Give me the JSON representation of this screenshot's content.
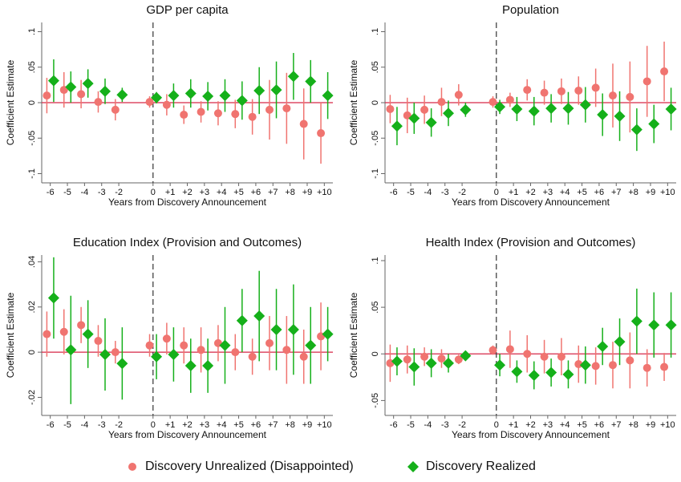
{
  "chart_data": [
    {
      "type": "errorbar",
      "title": "GDP per capita",
      "x_label": "Years from Discovery Announcement",
      "y_label": "Coefficient Estimate",
      "x": [
        -6,
        -5,
        -4,
        -3,
        -2,
        0,
        1,
        2,
        3,
        4,
        5,
        6,
        7,
        8,
        9,
        10
      ],
      "xlim": [
        -6.5,
        10.5
      ],
      "xticks": [
        -6,
        -5,
        -4,
        -3,
        -2,
        0,
        {
          "value": 1,
          "label": "+1"
        },
        {
          "value": 2,
          "label": "+2"
        },
        {
          "value": 3,
          "label": "+3"
        },
        {
          "value": 4,
          "label": "+4"
        },
        {
          "value": 5,
          "label": "+5"
        },
        {
          "value": 6,
          "label": "+6"
        },
        {
          "value": 7,
          "label": "+7"
        },
        {
          "value": 8,
          "label": "+8"
        },
        {
          "value": 9,
          "label": "+9"
        },
        {
          "value": 10,
          "label": "+10"
        }
      ],
      "ylim": [
        -0.113,
        0.113
      ],
      "yticks": [
        {
          "value": -0.1,
          "label": "-.1"
        },
        {
          "value": -0.05,
          "label": "-.05"
        },
        0,
        {
          "value": 0.05,
          "label": ".05"
        },
        {
          "value": 0.1,
          "label": ".1"
        }
      ],
      "vline": 0,
      "hline": 0,
      "hline_color": "#d62747",
      "series": [
        {
          "name": "Discovery Unrealized (Disappointed)",
          "color": "#f07470",
          "marker": "circle",
          "values": [
            0.01,
            0.018,
            0.012,
            0.001,
            -0.01,
            0.001,
            -0.003,
            -0.017,
            -0.013,
            -0.015,
            -0.016,
            -0.02,
            -0.01,
            -0.008,
            -0.03,
            -0.043
          ],
          "errors": [
            0.025,
            0.025,
            0.02,
            0.015,
            0.015,
            0.008,
            0.015,
            0.013,
            0.015,
            0.017,
            0.02,
            0.025,
            0.042,
            0.05,
            0.05,
            0.043
          ]
        },
        {
          "name": "Discovery Realized",
          "color": "#15b01a",
          "marker": "diamond",
          "values": [
            0.031,
            0.022,
            0.027,
            0.016,
            0.011,
            0.007,
            0.01,
            0.013,
            0.009,
            0.01,
            0.003,
            0.017,
            0.018,
            0.037,
            0.03,
            0.01
          ],
          "errors": [
            0.03,
            0.022,
            0.02,
            0.018,
            0.01,
            0.008,
            0.017,
            0.02,
            0.02,
            0.023,
            0.027,
            0.033,
            0.04,
            0.033,
            0.03,
            0.033
          ]
        }
      ]
    },
    {
      "type": "errorbar",
      "title": "Population",
      "x_label": "Years from Discovery Announcement",
      "y_label": "Coefficient Estimate",
      "x": [
        -6,
        -5,
        -4,
        -3,
        -2,
        0,
        1,
        2,
        3,
        4,
        5,
        6,
        7,
        8,
        9,
        10
      ],
      "xlim": [
        -6.5,
        10.5
      ],
      "xticks": [
        -6,
        -5,
        -4,
        -3,
        -2,
        0,
        {
          "value": 1,
          "label": "+1"
        },
        {
          "value": 2,
          "label": "+2"
        },
        {
          "value": 3,
          "label": "+3"
        },
        {
          "value": 4,
          "label": "+4"
        },
        {
          "value": 5,
          "label": "+5"
        },
        {
          "value": 6,
          "label": "+6"
        },
        {
          "value": 7,
          "label": "+7"
        },
        {
          "value": 8,
          "label": "+8"
        },
        {
          "value": 9,
          "label": "+9"
        },
        {
          "value": 10,
          "label": "+10"
        }
      ],
      "ylim": [
        -0.113,
        0.113
      ],
      "yticks": [
        {
          "value": -0.1,
          "label": "-.1"
        },
        {
          "value": -0.05,
          "label": "-.05"
        },
        0,
        {
          "value": 0.05,
          "label": ".05"
        },
        {
          "value": 0.1,
          "label": ".1"
        }
      ],
      "vline": 0,
      "hline": 0,
      "hline_color": "#d62747",
      "series": [
        {
          "color": "#f07470",
          "marker": "circle",
          "values": [
            -0.009,
            -0.018,
            -0.01,
            0.001,
            0.011,
            0.001,
            0.004,
            0.018,
            0.014,
            0.016,
            0.017,
            0.021,
            0.01,
            0.008,
            0.03,
            0.044
          ],
          "errors": [
            0.02,
            0.025,
            0.02,
            0.02,
            0.015,
            0.008,
            0.01,
            0.015,
            0.017,
            0.018,
            0.02,
            0.027,
            0.045,
            0.05,
            0.05,
            0.042
          ]
        },
        {
          "color": "#15b01a",
          "marker": "diamond",
          "values": [
            -0.033,
            -0.022,
            -0.028,
            -0.015,
            -0.01,
            -0.006,
            -0.009,
            -0.012,
            -0.008,
            -0.008,
            -0.003,
            -0.017,
            -0.019,
            -0.038,
            -0.03,
            -0.009
          ],
          "errors": [
            0.027,
            0.022,
            0.02,
            0.018,
            0.01,
            0.01,
            0.017,
            0.02,
            0.02,
            0.023,
            0.025,
            0.03,
            0.035,
            0.03,
            0.027,
            0.03
          ]
        }
      ]
    },
    {
      "type": "errorbar",
      "title": "Education Index (Provision and Outcomes)",
      "x_label": "Years from Discovery Announcement",
      "y_label": "Coefficient Estimate",
      "x": [
        -6,
        -5,
        -4,
        -3,
        -2,
        0,
        1,
        2,
        3,
        4,
        5,
        6,
        7,
        8,
        9,
        10
      ],
      "xlim": [
        -6.5,
        10.5
      ],
      "xticks": [
        -6,
        -5,
        -4,
        -3,
        -2,
        0,
        {
          "value": 1,
          "label": "+1"
        },
        {
          "value": 2,
          "label": "+2"
        },
        {
          "value": 3,
          "label": "+3"
        },
        {
          "value": 4,
          "label": "+4"
        },
        {
          "value": 5,
          "label": "+5"
        },
        {
          "value": 6,
          "label": "+6"
        },
        {
          "value": 7,
          "label": "+7"
        },
        {
          "value": 8,
          "label": "+8"
        },
        {
          "value": 9,
          "label": "+9"
        },
        {
          "value": 10,
          "label": "+10"
        }
      ],
      "ylim": [
        -0.028,
        0.043
      ],
      "yticks": [
        {
          "value": -0.02,
          "label": "-.02"
        },
        0,
        {
          "value": 0.02,
          "label": ".02"
        },
        {
          "value": 0.04,
          "label": ".04"
        }
      ],
      "vline": 0,
      "hline": 0,
      "hline_color": "#d62747",
      "series": [
        {
          "color": "#f07470",
          "marker": "circle",
          "values": [
            0.008,
            0.009,
            0.012,
            0.005,
            0,
            0.003,
            0.006,
            0.003,
            0.001,
            0.004,
            0,
            -0.002,
            0.004,
            0.001,
            -0.002,
            0.007
          ],
          "errors": [
            0.01,
            0.01,
            0.008,
            0.007,
            0.005,
            0.005,
            0.007,
            0.008,
            0.01,
            0.008,
            0.008,
            0.008,
            0.012,
            0.015,
            0.012,
            0.015
          ]
        },
        {
          "color": "#15b01a",
          "marker": "diamond",
          "values": [
            0.024,
            0.001,
            0.008,
            -0.001,
            -0.005,
            -0.002,
            -0.001,
            -0.006,
            -0.006,
            0.003,
            0.014,
            0.016,
            0.01,
            0.01,
            0.003,
            0.008
          ],
          "errors": [
            0.018,
            0.024,
            0.015,
            0.016,
            0.016,
            0.01,
            0.012,
            0.012,
            0.012,
            0.017,
            0.014,
            0.02,
            0.018,
            0.02,
            0.017,
            0.012
          ]
        }
      ]
    },
    {
      "type": "errorbar",
      "title": "Health Index (Provision and Outcomes)",
      "x_label": "Years from Discovery Announcement",
      "y_label": "Coefficient Estimate",
      "x": [
        -6,
        -5,
        -4,
        -3,
        -2,
        0,
        1,
        2,
        3,
        4,
        5,
        6,
        7,
        8,
        9,
        10
      ],
      "xlim": [
        -6.5,
        10.5
      ],
      "xticks": [
        -6,
        -5,
        -4,
        -3,
        -2,
        0,
        {
          "value": 1,
          "label": "+1"
        },
        {
          "value": 2,
          "label": "+2"
        },
        {
          "value": 3,
          "label": "+3"
        },
        {
          "value": 4,
          "label": "+4"
        },
        {
          "value": 5,
          "label": "+5"
        },
        {
          "value": 6,
          "label": "+6"
        },
        {
          "value": 7,
          "label": "+7"
        },
        {
          "value": 8,
          "label": "+8"
        },
        {
          "value": 9,
          "label": "+9"
        },
        {
          "value": 10,
          "label": "+10"
        }
      ],
      "ylim": [
        -0.066,
        0.106
      ],
      "yticks": [
        {
          "value": -0.05,
          "label": "-.05"
        },
        0,
        {
          "value": 0.05,
          "label": ".05"
        },
        {
          "value": 0.1,
          "label": ".1"
        }
      ],
      "vline": 0,
      "hline": 0,
      "hline_color": "#d62747",
      "series": [
        {
          "color": "#f07470",
          "marker": "circle",
          "values": [
            -0.01,
            -0.006,
            -0.003,
            -0.005,
            -0.006,
            0.004,
            0.005,
            0,
            -0.003,
            -0.003,
            -0.011,
            -0.013,
            -0.012,
            -0.007,
            -0.015,
            -0.014
          ],
          "errors": [
            0.02,
            0.015,
            0.01,
            0.01,
            0.005,
            0.005,
            0.02,
            0.02,
            0.018,
            0.02,
            0.02,
            0.02,
            0.025,
            0.03,
            0.02,
            0.015
          ]
        },
        {
          "color": "#15b01a",
          "marker": "diamond",
          "values": [
            -0.008,
            -0.014,
            -0.01,
            -0.01,
            -0.002,
            -0.012,
            -0.019,
            -0.023,
            -0.02,
            -0.022,
            -0.012,
            0.008,
            0.013,
            0.035,
            0.031,
            0.031
          ],
          "errors": [
            0.015,
            0.02,
            0.015,
            0.01,
            0.005,
            0.012,
            0.012,
            0.015,
            0.015,
            0.015,
            0.02,
            0.02,
            0.025,
            0.035,
            0.035,
            0.035
          ]
        }
      ]
    }
  ]
}
